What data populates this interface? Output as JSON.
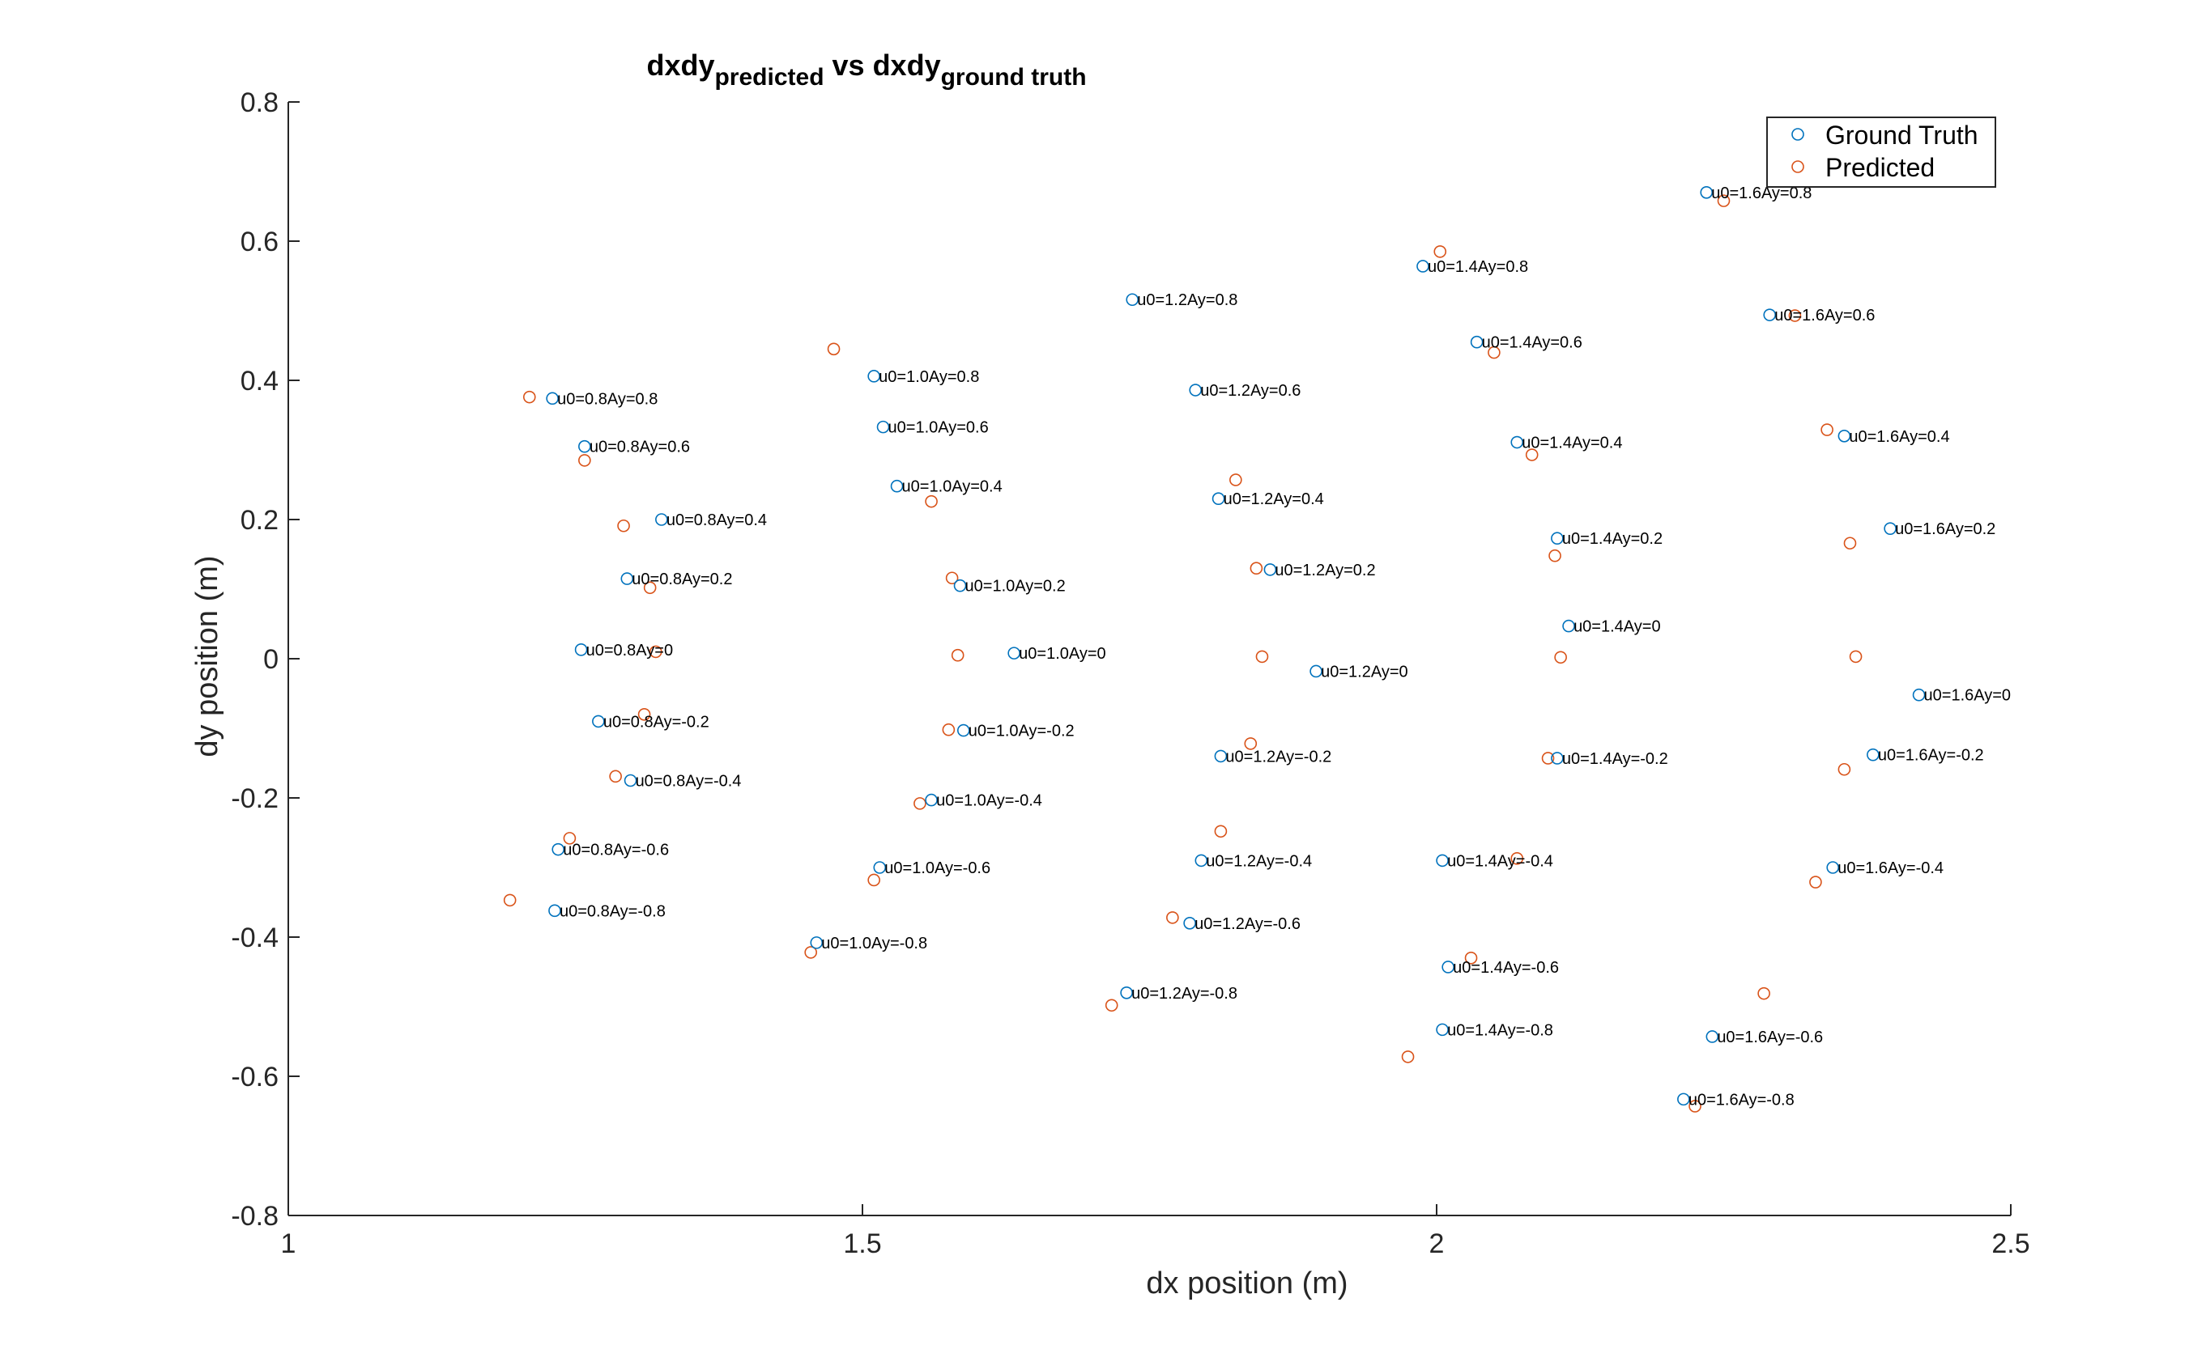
{
  "chart_data": {
    "type": "scatter",
    "title": {
      "main1": "dxdy",
      "sub1": "predicted",
      "mid": " vs dxdy",
      "sub2": "ground truth"
    },
    "xlabel": "dx position (m)",
    "ylabel": "dy position (m)",
    "xlim": [
      1,
      2.5
    ],
    "ylim": [
      -0.8,
      0.8
    ],
    "xticks": [
      1,
      1.5,
      2,
      2.5
    ],
    "xtick_labels": [
      "1",
      "1.5",
      "2",
      "2.5"
    ],
    "yticks": [
      -0.8,
      -0.6,
      -0.4,
      -0.2,
      0,
      0.2,
      0.4,
      0.6,
      0.8
    ],
    "ytick_labels": [
      "-0.8",
      "-0.6",
      "-0.4",
      "-0.2",
      "0",
      "0.2",
      "0.4",
      "0.6",
      "0.8"
    ],
    "grid": false,
    "legend_position": "top-right",
    "colors": {
      "ground_truth": "#0072BD",
      "predicted": "#D95319",
      "axis": "#262626"
    },
    "series": [
      {
        "name": "Ground Truth",
        "points": [
          {
            "x": 1.23,
            "y": 0.374,
            "label": "u0=0.8Ay=0.8"
          },
          {
            "x": 1.258,
            "y": 0.305,
            "label": "u0=0.8Ay=0.6"
          },
          {
            "x": 1.325,
            "y": 0.2,
            "label": "u0=0.8Ay=0.4"
          },
          {
            "x": 1.295,
            "y": 0.115,
            "label": "u0=0.8Ay=0.2"
          },
          {
            "x": 1.255,
            "y": 0.013,
            "label": "u0=0.8Ay=0"
          },
          {
            "x": 1.27,
            "y": -0.09,
            "label": "u0=0.8Ay=-0.2"
          },
          {
            "x": 1.298,
            "y": -0.175,
            "label": "u0=0.8Ay=-0.4"
          },
          {
            "x": 1.235,
            "y": -0.274,
            "label": "u0=0.8Ay=-0.6"
          },
          {
            "x": 1.232,
            "y": -0.362,
            "label": "u0=0.8Ay=-0.8"
          },
          {
            "x": 1.51,
            "y": 0.406,
            "label": "u0=1.0Ay=0.8"
          },
          {
            "x": 1.518,
            "y": 0.333,
            "label": "u0=1.0Ay=0.6"
          },
          {
            "x": 1.53,
            "y": 0.248,
            "label": "u0=1.0Ay=0.4"
          },
          {
            "x": 1.585,
            "y": 0.105,
            "label": "u0=1.0Ay=0.2"
          },
          {
            "x": 1.632,
            "y": 0.008,
            "label": "u0=1.0Ay=0"
          },
          {
            "x": 1.588,
            "y": -0.103,
            "label": "u0=1.0Ay=-0.2"
          },
          {
            "x": 1.56,
            "y": -0.203,
            "label": "u0=1.0Ay=-0.4"
          },
          {
            "x": 1.515,
            "y": -0.3,
            "label": "u0=1.0Ay=-0.6"
          },
          {
            "x": 1.46,
            "y": -0.408,
            "label": "u0=1.0Ay=-0.8"
          },
          {
            "x": 1.735,
            "y": 0.516,
            "label": "u0=1.2Ay=0.8"
          },
          {
            "x": 1.79,
            "y": 0.386,
            "label": "u0=1.2Ay=0.6"
          },
          {
            "x": 1.81,
            "y": 0.23,
            "label": "u0=1.2Ay=0.4"
          },
          {
            "x": 1.855,
            "y": 0.128,
            "label": "u0=1.2Ay=0.2"
          },
          {
            "x": 1.895,
            "y": -0.018,
            "label": "u0=1.2Ay=0"
          },
          {
            "x": 1.812,
            "y": -0.14,
            "label": "u0=1.2Ay=-0.2"
          },
          {
            "x": 1.795,
            "y": -0.29,
            "label": "u0=1.2Ay=-0.4"
          },
          {
            "x": 1.785,
            "y": -0.38,
            "label": "u0=1.2Ay=-0.6"
          },
          {
            "x": 1.73,
            "y": -0.48,
            "label": "u0=1.2Ay=-0.8"
          },
          {
            "x": 2.235,
            "y": 0.67,
            "label": "u0=1.6Ay=0.8"
          },
          {
            "x": 1.988,
            "y": 0.564,
            "label": "u0=1.4Ay=0.8"
          },
          {
            "x": 2.29,
            "y": 0.494,
            "label": "u0=1.6Ay=0.6"
          },
          {
            "x": 2.035,
            "y": 0.455,
            "label": "u0=1.4Ay=0.6"
          },
          {
            "x": 2.07,
            "y": 0.311,
            "label": "u0=1.4Ay=0.4"
          },
          {
            "x": 2.355,
            "y": 0.32,
            "label": "u0=1.6Ay=0.4"
          },
          {
            "x": 2.105,
            "y": 0.173,
            "label": "u0=1.4Ay=0.2"
          },
          {
            "x": 2.395,
            "y": 0.187,
            "label": "u0=1.6Ay=0.2"
          },
          {
            "x": 2.115,
            "y": 0.047,
            "label": "u0=1.4Ay=0"
          },
          {
            "x": 2.42,
            "y": -0.052,
            "label": "u0=1.6Ay=0"
          },
          {
            "x": 2.105,
            "y": -0.143,
            "label": "u0=1.4Ay=-0.2"
          },
          {
            "x": 2.38,
            "y": -0.138,
            "label": "u0=1.6Ay=-0.2"
          },
          {
            "x": 2.005,
            "y": -0.29,
            "label": "u0=1.4Ay=-0.4"
          },
          {
            "x": 2.345,
            "y": -0.3,
            "label": "u0=1.6Ay=-0.4"
          },
          {
            "x": 2.01,
            "y": -0.443,
            "label": "u0=1.4Ay=-0.6"
          },
          {
            "x": 2.24,
            "y": -0.543,
            "label": "u0=1.6Ay=-0.6"
          },
          {
            "x": 2.005,
            "y": -0.533,
            "label": "u0=1.4Ay=-0.8"
          },
          {
            "x": 2.215,
            "y": -0.633,
            "label": "u0=1.6Ay=-0.8"
          }
        ]
      },
      {
        "name": "Predicted",
        "points": [
          {
            "x": 1.21,
            "y": 0.376
          },
          {
            "x": 1.258,
            "y": 0.285
          },
          {
            "x": 1.292,
            "y": 0.191
          },
          {
            "x": 1.315,
            "y": 0.102
          },
          {
            "x": 1.32,
            "y": 0.01
          },
          {
            "x": 1.31,
            "y": -0.08
          },
          {
            "x": 1.285,
            "y": -0.169
          },
          {
            "x": 1.245,
            "y": -0.258
          },
          {
            "x": 1.193,
            "y": -0.347
          },
          {
            "x": 1.475,
            "y": 0.445
          },
          {
            "x": 1.56,
            "y": 0.226
          },
          {
            "x": 1.578,
            "y": 0.116
          },
          {
            "x": 1.583,
            "y": 0.005
          },
          {
            "x": 1.575,
            "y": -0.102
          },
          {
            "x": 1.55,
            "y": -0.208
          },
          {
            "x": 1.51,
            "y": -0.318
          },
          {
            "x": 1.455,
            "y": -0.422
          },
          {
            "x": 1.825,
            "y": 0.257
          },
          {
            "x": 1.843,
            "y": 0.13
          },
          {
            "x": 1.848,
            "y": 0.003
          },
          {
            "x": 1.838,
            "y": -0.122
          },
          {
            "x": 1.812,
            "y": -0.248
          },
          {
            "x": 1.77,
            "y": -0.372
          },
          {
            "x": 1.717,
            "y": -0.498
          },
          {
            "x": 2.003,
            "y": 0.585
          },
          {
            "x": 2.05,
            "y": 0.44
          },
          {
            "x": 2.083,
            "y": 0.293
          },
          {
            "x": 2.103,
            "y": 0.148
          },
          {
            "x": 2.108,
            "y": 0.002
          },
          {
            "x": 2.097,
            "y": -0.143
          },
          {
            "x": 2.07,
            "y": -0.287
          },
          {
            "x": 2.03,
            "y": -0.43
          },
          {
            "x": 1.975,
            "y": -0.572
          },
          {
            "x": 2.25,
            "y": 0.658
          },
          {
            "x": 2.312,
            "y": 0.493
          },
          {
            "x": 2.34,
            "y": 0.329
          },
          {
            "x": 2.36,
            "y": 0.166
          },
          {
            "x": 2.365,
            "y": 0.003
          },
          {
            "x": 2.355,
            "y": -0.159
          },
          {
            "x": 2.33,
            "y": -0.321
          },
          {
            "x": 2.285,
            "y": -0.481
          },
          {
            "x": 2.225,
            "y": -0.643
          }
        ]
      }
    ]
  }
}
